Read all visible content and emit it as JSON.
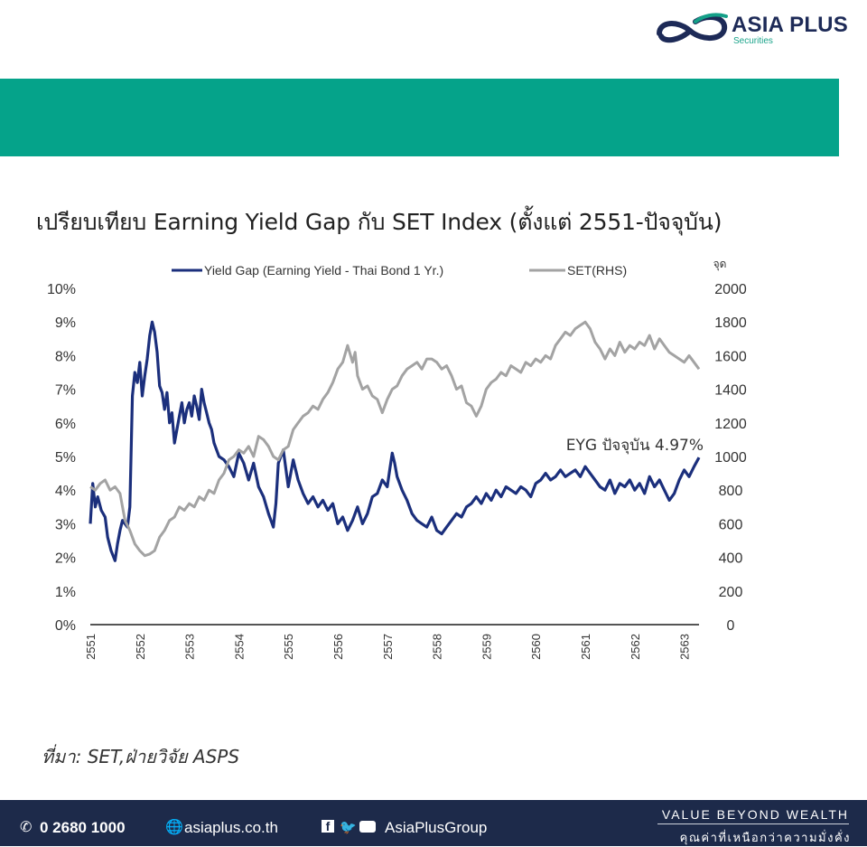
{
  "header": {
    "brand_name": "ASIA PLUS",
    "brand_sub": "Securities",
    "band_color": "#05a38a"
  },
  "title": "เปรียบเทียบ Earning Yield Gap กับ SET Index (ตั้งแต่ 2551-ปัจจุบัน)",
  "chart_data": {
    "type": "line",
    "left_axis": {
      "ticks": [
        "0%",
        "1%",
        "2%",
        "3%",
        "4%",
        "5%",
        "6%",
        "7%",
        "8%",
        "9%",
        "10%"
      ],
      "ylim": [
        0,
        10
      ]
    },
    "right_axis": {
      "unit_label": "จุด",
      "ticks": [
        "0",
        "200",
        "400",
        "600",
        "800",
        "1000",
        "1200",
        "1400",
        "1600",
        "1800",
        "2000"
      ],
      "ylim": [
        0,
        2000
      ]
    },
    "x_ticks": [
      "2551",
      "2552",
      "2553",
      "2554",
      "2555",
      "2556",
      "2557",
      "2558",
      "2559",
      "2560",
      "2561",
      "2562",
      "2563"
    ],
    "xlim": [
      2551,
      2563.3
    ],
    "annotation": "EYG ปัจจุบัน 4.97%",
    "series": [
      {
        "name": "Yield Gap (Earning Yield - Thai Bond 1 Yr.)",
        "axis": "left",
        "color": "#1b2f7c",
        "x": [
          2551.0,
          2551.05,
          2551.1,
          2551.15,
          2551.22,
          2551.3,
          2551.35,
          2551.42,
          2551.5,
          2551.55,
          2551.6,
          2551.65,
          2551.7,
          2551.75,
          2551.8,
          2551.85,
          2551.9,
          2551.95,
          2552.0,
          2552.05,
          2552.1,
          2552.15,
          2552.2,
          2552.25,
          2552.3,
          2552.35,
          2552.4,
          2552.45,
          2552.5,
          2552.55,
          2552.6,
          2552.65,
          2552.7,
          2552.75,
          2552.8,
          2552.85,
          2552.9,
          2552.95,
          2553.0,
          2553.05,
          2553.1,
          2553.15,
          2553.2,
          2553.25,
          2553.3,
          2553.35,
          2553.4,
          2553.45,
          2553.5,
          2553.6,
          2553.7,
          2553.8,
          2553.9,
          2554.0,
          2554.1,
          2554.2,
          2554.3,
          2554.4,
          2554.5,
          2554.6,
          2554.7,
          2554.75,
          2554.8,
          2554.9,
          2555.0,
          2555.1,
          2555.2,
          2555.3,
          2555.4,
          2555.5,
          2555.6,
          2555.7,
          2555.8,
          2555.9,
          2556.0,
          2556.1,
          2556.2,
          2556.3,
          2556.4,
          2556.5,
          2556.6,
          2556.7,
          2556.8,
          2556.9,
          2557.0,
          2557.05,
          2557.1,
          2557.15,
          2557.2,
          2557.3,
          2557.4,
          2557.5,
          2557.6,
          2557.7,
          2557.8,
          2557.9,
          2558.0,
          2558.1,
          2558.2,
          2558.3,
          2558.4,
          2558.5,
          2558.6,
          2558.7,
          2558.8,
          2558.9,
          2559.0,
          2559.1,
          2559.2,
          2559.3,
          2559.4,
          2559.5,
          2559.6,
          2559.7,
          2559.8,
          2559.9,
          2560.0,
          2560.1,
          2560.2,
          2560.3,
          2560.4,
          2560.5,
          2560.6,
          2560.7,
          2560.8,
          2560.9,
          2561.0,
          2561.1,
          2561.2,
          2561.3,
          2561.4,
          2561.5,
          2561.6,
          2561.7,
          2561.8,
          2561.9,
          2562.0,
          2562.1,
          2562.2,
          2562.3,
          2562.4,
          2562.5,
          2562.6,
          2562.7,
          2562.8,
          2562.9,
          2563.0,
          2563.1,
          2563.2,
          2563.3
        ],
        "values": [
          3.0,
          4.2,
          3.5,
          3.8,
          3.4,
          3.2,
          2.6,
          2.2,
          1.9,
          2.4,
          2.8,
          3.1,
          3.0,
          2.9,
          3.5,
          6.8,
          7.5,
          7.2,
          7.8,
          6.8,
          7.4,
          7.9,
          8.6,
          9.0,
          8.7,
          8.1,
          7.1,
          6.9,
          6.4,
          6.9,
          6.0,
          6.3,
          5.4,
          5.8,
          6.2,
          6.6,
          6.0,
          6.4,
          6.6,
          6.2,
          6.8,
          6.5,
          6.1,
          7.0,
          6.6,
          6.3,
          6.0,
          5.8,
          5.4,
          5.0,
          4.9,
          4.7,
          4.4,
          5.1,
          4.8,
          4.3,
          4.8,
          4.1,
          3.8,
          3.3,
          2.9,
          3.6,
          4.8,
          5.2,
          4.1,
          4.9,
          4.3,
          3.9,
          3.6,
          3.8,
          3.5,
          3.7,
          3.4,
          3.6,
          3.0,
          3.2,
          2.8,
          3.1,
          3.5,
          3.0,
          3.3,
          3.8,
          3.9,
          4.3,
          4.1,
          4.6,
          5.1,
          4.8,
          4.4,
          4.0,
          3.7,
          3.3,
          3.1,
          3.0,
          2.9,
          3.2,
          2.8,
          2.7,
          2.9,
          3.1,
          3.3,
          3.2,
          3.5,
          3.6,
          3.8,
          3.6,
          3.9,
          3.7,
          4.0,
          3.8,
          4.1,
          4.0,
          3.9,
          4.1,
          4.0,
          3.8,
          4.2,
          4.3,
          4.5,
          4.3,
          4.4,
          4.6,
          4.4,
          4.5,
          4.6,
          4.4,
          4.7,
          4.5,
          4.3,
          4.1,
          4.0,
          4.3,
          3.9,
          4.2,
          4.1,
          4.3,
          4.0,
          4.2,
          3.9,
          4.4,
          4.1,
          4.3,
          4.0,
          3.7,
          3.9,
          4.3,
          4.6,
          4.4,
          4.7,
          4.97
        ]
      },
      {
        "name": "SET(RHS)",
        "axis": "right",
        "color": "#a3a3a3",
        "x": [
          2551.0,
          2551.1,
          2551.2,
          2551.3,
          2551.4,
          2551.5,
          2551.6,
          2551.7,
          2551.8,
          2551.9,
          2552.0,
          2552.1,
          2552.2,
          2552.3,
          2552.4,
          2552.5,
          2552.6,
          2552.7,
          2552.8,
          2552.9,
          2553.0,
          2553.1,
          2553.2,
          2553.3,
          2553.4,
          2553.5,
          2553.6,
          2553.7,
          2553.8,
          2553.9,
          2554.0,
          2554.1,
          2554.2,
          2554.3,
          2554.4,
          2554.5,
          2554.6,
          2554.7,
          2554.8,
          2554.9,
          2555.0,
          2555.1,
          2555.2,
          2555.3,
          2555.4,
          2555.5,
          2555.6,
          2555.7,
          2555.8,
          2555.9,
          2556.0,
          2556.1,
          2556.2,
          2556.3,
          2556.35,
          2556.4,
          2556.5,
          2556.6,
          2556.7,
          2556.8,
          2556.9,
          2557.0,
          2557.1,
          2557.2,
          2557.3,
          2557.4,
          2557.5,
          2557.6,
          2557.7,
          2557.8,
          2557.9,
          2558.0,
          2558.1,
          2558.2,
          2558.3,
          2558.4,
          2558.5,
          2558.6,
          2558.7,
          2558.8,
          2558.9,
          2559.0,
          2559.1,
          2559.2,
          2559.3,
          2559.4,
          2559.5,
          2559.6,
          2559.7,
          2559.8,
          2559.9,
          2560.0,
          2560.1,
          2560.2,
          2560.3,
          2560.4,
          2560.5,
          2560.6,
          2560.7,
          2560.8,
          2560.9,
          2561.0,
          2561.1,
          2561.2,
          2561.3,
          2561.4,
          2561.5,
          2561.6,
          2561.7,
          2561.8,
          2561.9,
          2562.0,
          2562.1,
          2562.2,
          2562.3,
          2562.4,
          2562.5,
          2562.6,
          2562.7,
          2562.8,
          2562.9,
          2563.0,
          2563.1,
          2563.2,
          2563.3
        ],
        "values": [
          820,
          800,
          840,
          860,
          800,
          820,
          780,
          620,
          560,
          480,
          440,
          410,
          420,
          440,
          520,
          560,
          620,
          640,
          700,
          680,
          720,
          700,
          760,
          740,
          800,
          780,
          860,
          900,
          980,
          1000,
          1040,
          1020,
          1060,
          1000,
          1120,
          1100,
          1060,
          1000,
          980,
          1040,
          1060,
          1160,
          1200,
          1240,
          1260,
          1300,
          1280,
          1340,
          1380,
          1440,
          1520,
          1560,
          1660,
          1560,
          1620,
          1480,
          1400,
          1420,
          1360,
          1340,
          1260,
          1340,
          1400,
          1420,
          1480,
          1520,
          1540,
          1560,
          1520,
          1580,
          1580,
          1560,
          1520,
          1540,
          1480,
          1400,
          1420,
          1320,
          1300,
          1240,
          1300,
          1400,
          1440,
          1460,
          1500,
          1480,
          1540,
          1520,
          1500,
          1560,
          1540,
          1580,
          1560,
          1600,
          1580,
          1660,
          1700,
          1740,
          1720,
          1760,
          1780,
          1800,
          1760,
          1680,
          1640,
          1580,
          1640,
          1600,
          1680,
          1620,
          1660,
          1640,
          1680,
          1660,
          1720,
          1640,
          1700,
          1660,
          1620,
          1600,
          1580,
          1560,
          1600,
          1560,
          1520
        ]
      }
    ]
  },
  "source": "ที่มา: SET,ฝ่ายวิจัย ASPS",
  "footer": {
    "phone": "0 2680 1000",
    "website": "asiaplus.co.th",
    "social": "AsiaPlusGroup",
    "tagline": "VALUE BEYOND WEALTH",
    "tagline_th": "คุณค่าที่เหนือกว่าความมั่งคั่ง"
  }
}
